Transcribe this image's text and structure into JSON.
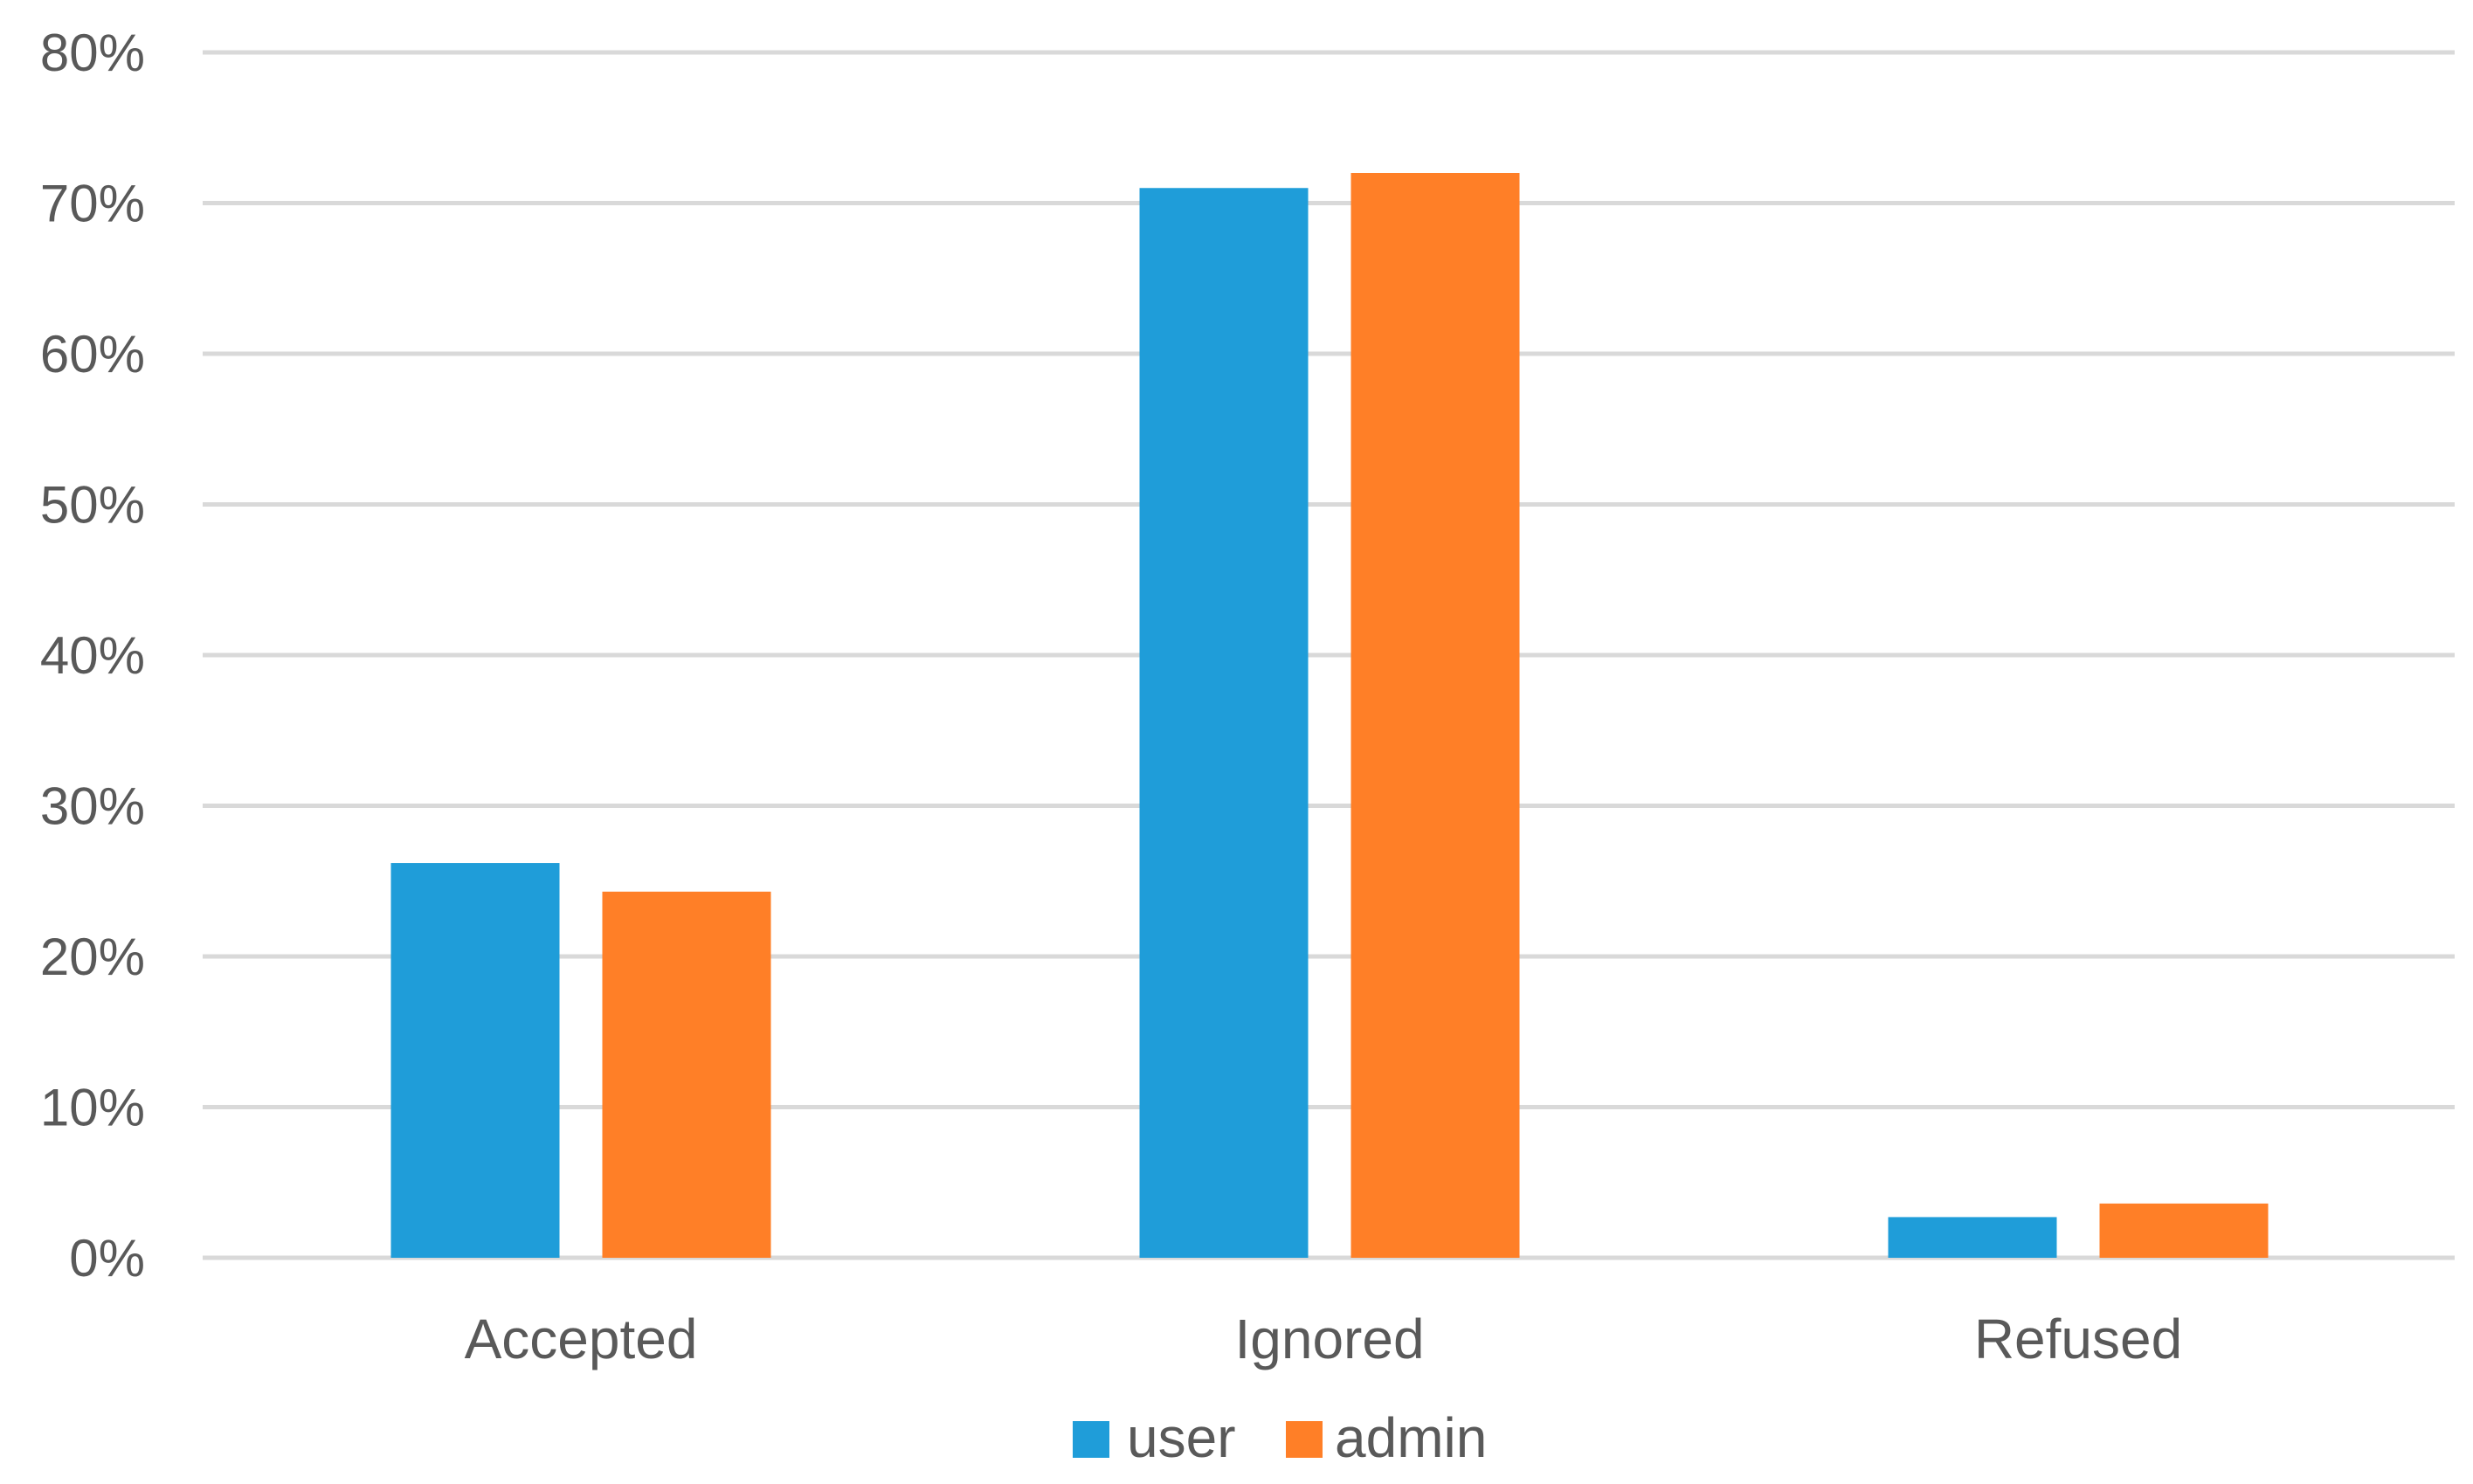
{
  "chart_data": {
    "type": "bar",
    "title": "",
    "xlabel": "",
    "ylabel": "",
    "categories": [
      "Accepted",
      "Ignored",
      "Refused"
    ],
    "series": [
      {
        "name": "user",
        "color": "#1f9dd9",
        "values": [
          26.2,
          71.0,
          2.7
        ]
      },
      {
        "name": "admin",
        "color": "#ff7f27",
        "values": [
          24.3,
          72.0,
          3.6
        ]
      }
    ],
    "ylim": [
      0,
      80
    ],
    "yticks": [
      0,
      10,
      20,
      30,
      40,
      50,
      60,
      70,
      80
    ],
    "ytick_labels": [
      "0%",
      "10%",
      "20%",
      "30%",
      "40%",
      "50%",
      "60%",
      "70%",
      "80%"
    ],
    "grid": true,
    "legend_position": "bottom"
  }
}
